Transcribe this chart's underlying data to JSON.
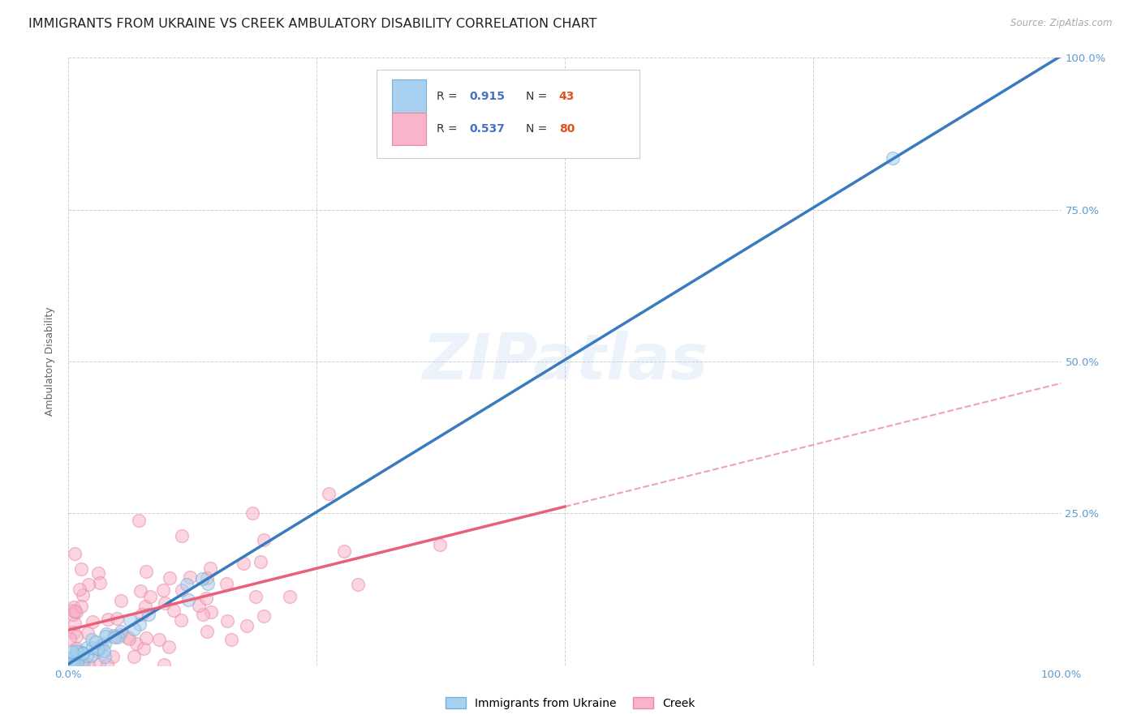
{
  "title": "IMMIGRANTS FROM UKRAINE VS CREEK AMBULATORY DISABILITY CORRELATION CHART",
  "source": "Source: ZipAtlas.com",
  "ylabel": "Ambulatory Disability",
  "watermark": "ZIPatlas",
  "ukraine_color_fill": "#a8d0f0",
  "ukraine_color_edge": "#7bafd4",
  "creek_color_fill": "#f8b4c8",
  "creek_color_edge": "#e889a8",
  "ukraine_line_color": "#3a7bbf",
  "creek_line_color": "#e8607a",
  "creek_dashed_color": "#f0a0b8",
  "ukraine_R": 0.915,
  "ukraine_N": 43,
  "creek_R": 0.537,
  "creek_N": 80,
  "legend_ukraine_label": "Immigrants from Ukraine",
  "legend_creek_label": "Creek",
  "background_color": "#ffffff",
  "grid_color": "#cccccc",
  "title_fontsize": 11.5,
  "axis_label_fontsize": 9,
  "tick_fontsize": 9.5,
  "right_tick_color": "#5b9bd5",
  "bottom_tick_color": "#5b9bd5",
  "legend_R_color": "#4472c4",
  "legend_N_color": "#e05020",
  "legend_text_color": "#333333"
}
